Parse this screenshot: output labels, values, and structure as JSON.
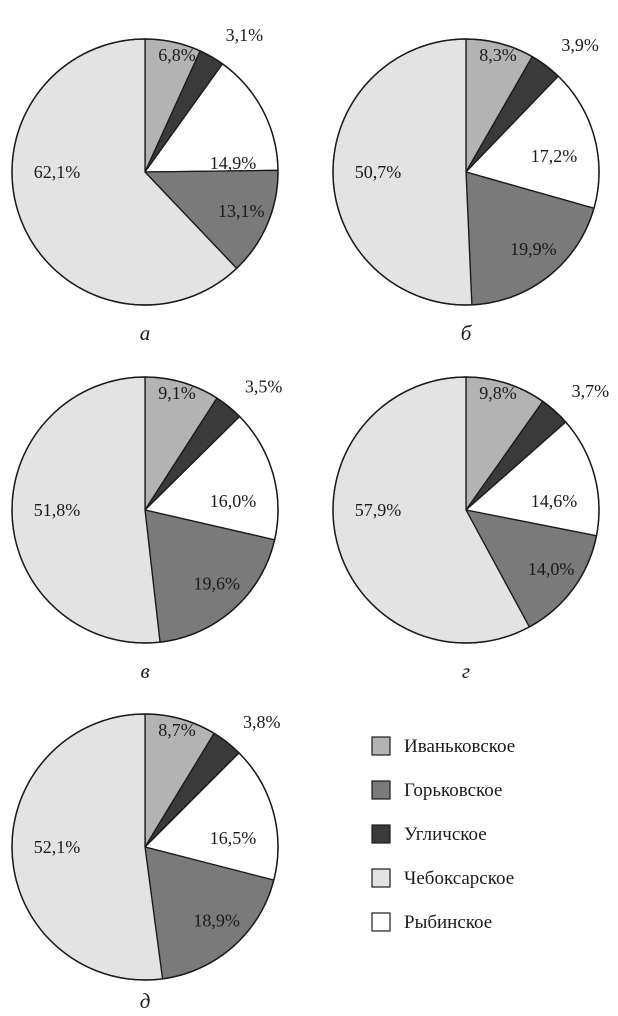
{
  "chart_data": [
    {
      "type": "pie",
      "caption": "а",
      "slices": [
        {
          "category": "Иваньковское",
          "value": 6.8,
          "label": "6,8%"
        },
        {
          "category": "Угличское",
          "value": 3.1,
          "label": "3,1%"
        },
        {
          "category": "Рыбинское",
          "value": 14.9,
          "label": "14,9%"
        },
        {
          "category": "Горьковское",
          "value": 13.1,
          "label": "13,1%"
        },
        {
          "category": "Чебоксарское",
          "value": 62.1,
          "label": "62,1%"
        }
      ]
    },
    {
      "type": "pie",
      "caption": "б",
      "slices": [
        {
          "category": "Иваньковское",
          "value": 8.3,
          "label": "8,3%"
        },
        {
          "category": "Угличское",
          "value": 3.9,
          "label": "3,9%"
        },
        {
          "category": "Рыбинское",
          "value": 17.2,
          "label": "17,2%"
        },
        {
          "category": "Горьковское",
          "value": 19.9,
          "label": "19,9%"
        },
        {
          "category": "Чебоксарское",
          "value": 50.7,
          "label": "50,7%"
        }
      ]
    },
    {
      "type": "pie",
      "caption": "в",
      "slices": [
        {
          "category": "Иваньковское",
          "value": 9.1,
          "label": "9,1%"
        },
        {
          "category": "Угличское",
          "value": 3.5,
          "label": "3,5%"
        },
        {
          "category": "Рыбинское",
          "value": 16.0,
          "label": "16,0%"
        },
        {
          "category": "Горьковское",
          "value": 19.6,
          "label": "19,6%"
        },
        {
          "category": "Чебоксарское",
          "value": 51.8,
          "label": "51,8%"
        }
      ]
    },
    {
      "type": "pie",
      "caption": "г",
      "slices": [
        {
          "category": "Иваньковское",
          "value": 9.8,
          "label": "9,8%"
        },
        {
          "category": "Угличское",
          "value": 3.7,
          "label": "3,7%"
        },
        {
          "category": "Рыбинское",
          "value": 14.6,
          "label": "14,6%"
        },
        {
          "category": "Горьковское",
          "value": 14.0,
          "label": "14,0%"
        },
        {
          "category": "Чебоксарское",
          "value": 57.9,
          "label": "57,9%"
        }
      ]
    },
    {
      "type": "pie",
      "caption": "д",
      "slices": [
        {
          "category": "Иваньковское",
          "value": 8.7,
          "label": "8,7%"
        },
        {
          "category": "Угличское",
          "value": 3.8,
          "label": "3,8%"
        },
        {
          "category": "Рыбинское",
          "value": 16.5,
          "label": "16,5%"
        },
        {
          "category": "Горьковское",
          "value": 18.9,
          "label": "18,9%"
        },
        {
          "category": "Чебоксарское",
          "value": 52.1,
          "label": "52,1%"
        }
      ]
    }
  ],
  "legend": {
    "placement": "bottom-right",
    "items": [
      {
        "name": "Иваньковское",
        "color": "#b3b3b3"
      },
      {
        "name": "Горьковское",
        "color": "#7a7a7a"
      },
      {
        "name": "Угличское",
        "color": "#3a3a3a"
      },
      {
        "name": "Чебоксарское",
        "color": "#e3e3e3"
      },
      {
        "name": "Рыбинское",
        "color": "#ffffff"
      }
    ]
  },
  "colors": {
    "Иваньковское": "#b3b3b3",
    "Угличское": "#3a3a3a",
    "Рыбинское": "#ffffff",
    "Горьковское": "#7a7a7a",
    "Чебоксарское": "#e3e3e3",
    "stroke": "#1a1a1a"
  }
}
